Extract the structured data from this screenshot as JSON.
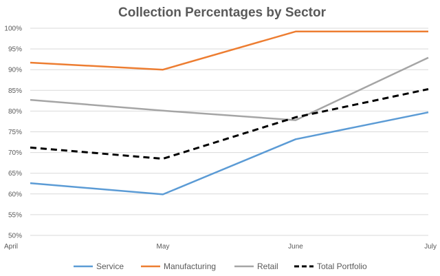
{
  "chart_data": {
    "type": "line",
    "title": "Collection Percentages by Sector",
    "xlabel": "",
    "ylabel": "",
    "categories": [
      "April",
      "May",
      "June",
      "July"
    ],
    "y_ticks": [
      "50%",
      "55%",
      "60%",
      "65%",
      "70%",
      "75%",
      "80%",
      "85%",
      "90%",
      "95%",
      "100%"
    ],
    "ylim": [
      0.5,
      1.0
    ],
    "grid": "horizontal",
    "legend_position": "bottom",
    "series": [
      {
        "name": "Service",
        "values": [
          0.626,
          0.599,
          0.732,
          0.797
        ],
        "color": "#5b9bd5",
        "dash": "solid"
      },
      {
        "name": "Manufacturing",
        "values": [
          0.917,
          0.9,
          0.992,
          0.992
        ],
        "color": "#ed7d31",
        "dash": "solid"
      },
      {
        "name": "Retail",
        "values": [
          0.827,
          0.801,
          0.778,
          0.929
        ],
        "color": "#a5a5a5",
        "dash": "solid"
      },
      {
        "name": "Total Portfolio",
        "values": [
          0.712,
          0.685,
          0.785,
          0.853
        ],
        "color": "#000000",
        "dash": "dashed"
      }
    ]
  }
}
